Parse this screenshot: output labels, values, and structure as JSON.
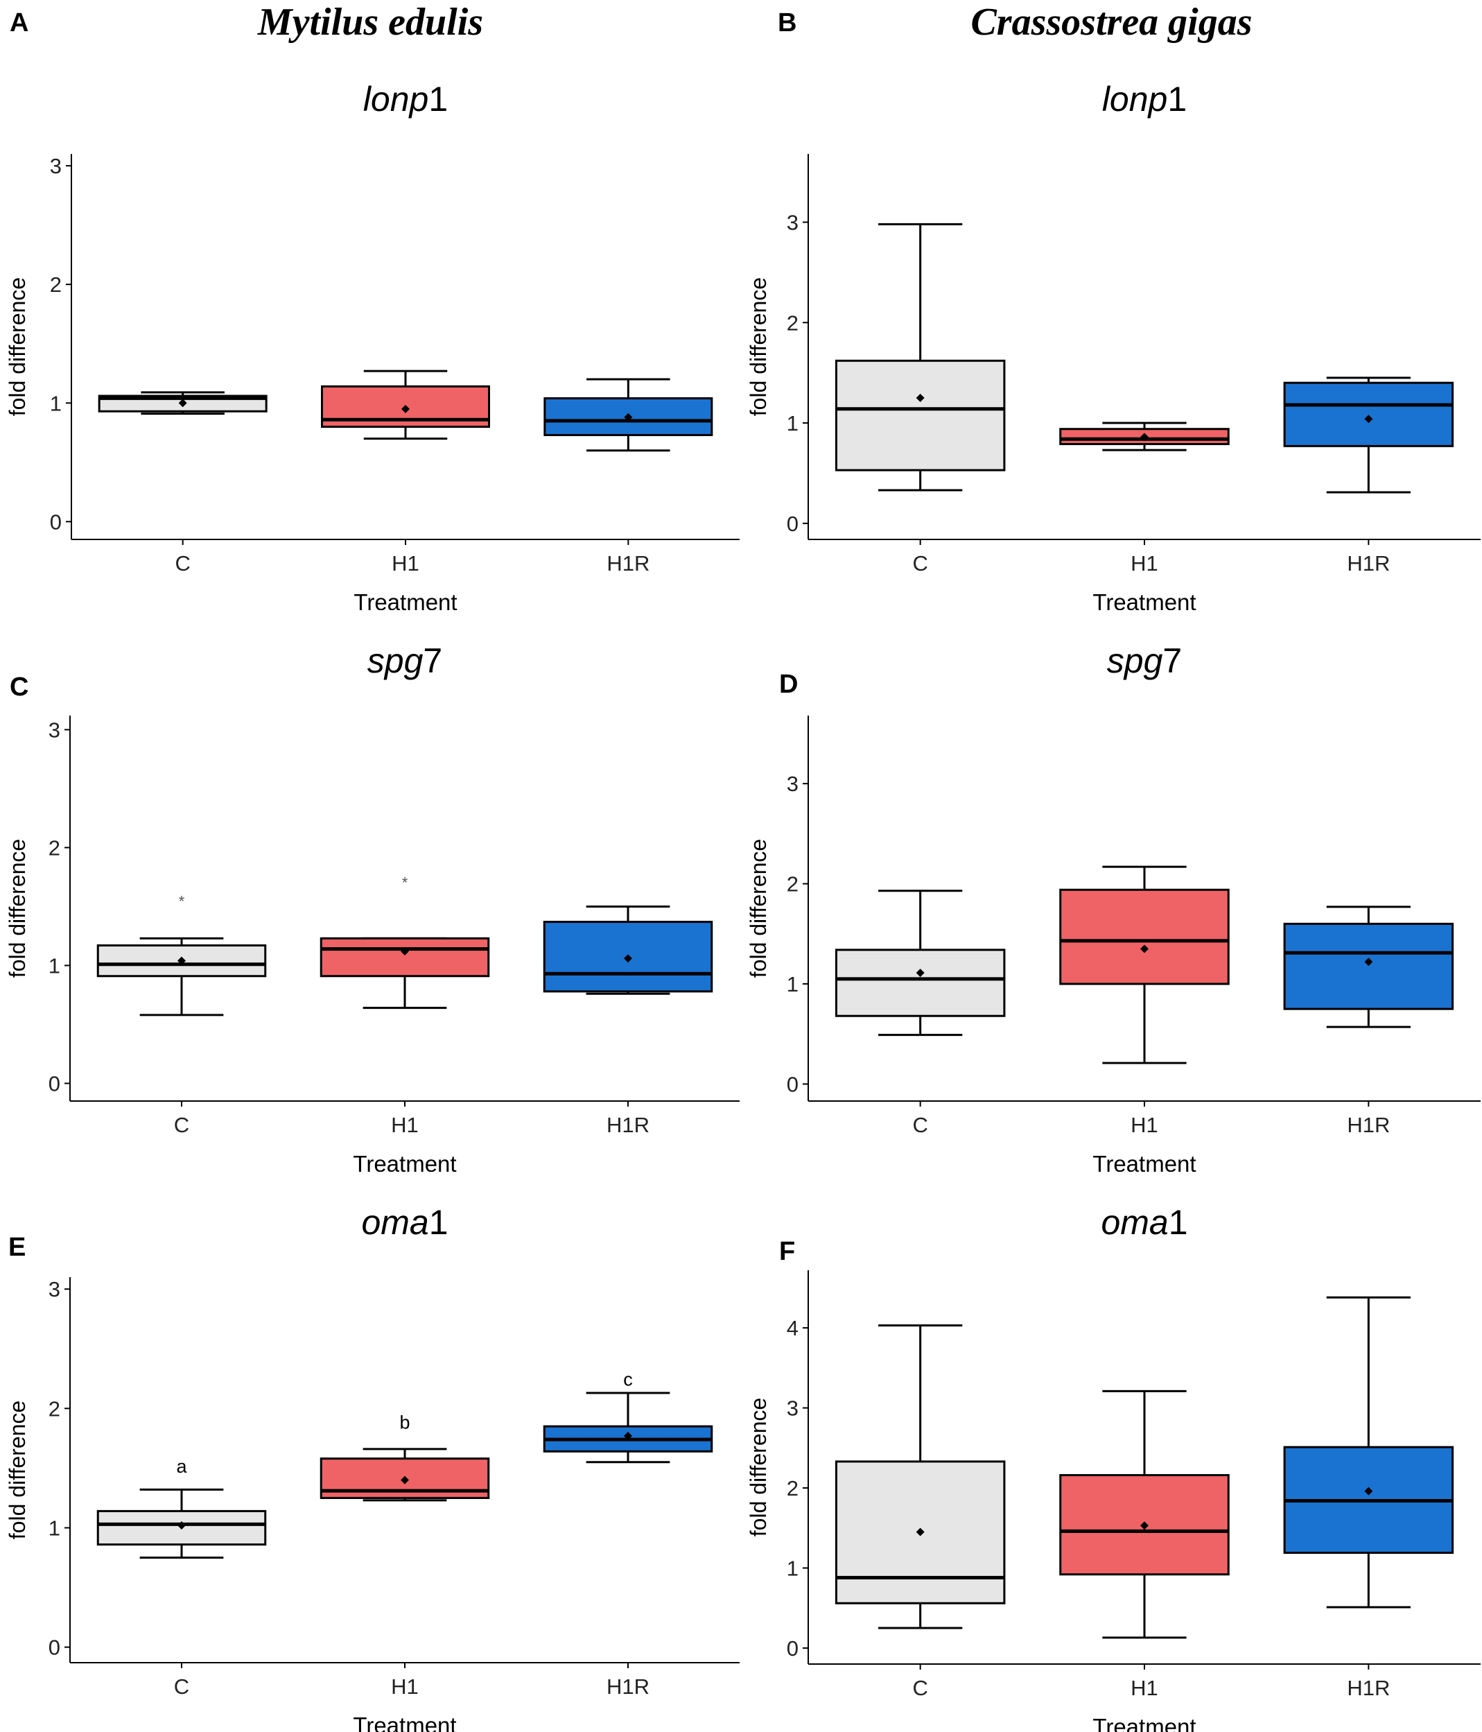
{
  "column_titles": [
    "Mytilus edulis",
    "Crassostrea gigas"
  ],
  "colors": {
    "C": "#e6e6e6",
    "H1": "#ef6366",
    "H1R": "#1b73d1",
    "line": "#000000"
  },
  "chart_data": [
    {
      "type": "box",
      "panel": "A",
      "title": "lonp1",
      "gene_italic": "lonp",
      "gene_num": "1",
      "xlabel": "Treatment",
      "ylabel": "fold difference",
      "ylim": [
        -0.15,
        3.1
      ],
      "yticks": [
        0,
        1,
        2,
        3
      ],
      "categories": [
        "C",
        "H1",
        "H1R"
      ],
      "series": [
        {
          "name": "C",
          "whisker_low": 0.91,
          "q1": 0.93,
          "median": 1.04,
          "q3": 1.06,
          "whisker_high": 1.09,
          "mean": 1.0,
          "outliers": []
        },
        {
          "name": "H1",
          "whisker_low": 0.7,
          "q1": 0.8,
          "median": 0.86,
          "q3": 1.14,
          "whisker_high": 1.27,
          "mean": 0.95,
          "outliers": []
        },
        {
          "name": "H1R",
          "whisker_low": 0.6,
          "q1": 0.73,
          "median": 0.85,
          "q3": 1.04,
          "whisker_high": 1.2,
          "mean": 0.88,
          "outliers": []
        }
      ],
      "letters": []
    },
    {
      "type": "box",
      "panel": "B",
      "title": "lonp1",
      "gene_italic": "lonp",
      "gene_num": "1",
      "xlabel": "Treatment",
      "ylabel": "fold difference",
      "ylim": [
        -0.16,
        3.68
      ],
      "yticks": [
        0,
        1,
        2,
        3
      ],
      "categories": [
        "C",
        "H1",
        "H1R"
      ],
      "series": [
        {
          "name": "C",
          "whisker_low": 0.33,
          "q1": 0.53,
          "median": 1.14,
          "q3": 1.62,
          "whisker_high": 2.98,
          "mean": 1.25,
          "outliers": []
        },
        {
          "name": "H1",
          "whisker_low": 0.73,
          "q1": 0.79,
          "median": 0.84,
          "q3": 0.94,
          "whisker_high": 1.0,
          "mean": 0.86,
          "outliers": []
        },
        {
          "name": "H1R",
          "whisker_low": 0.31,
          "q1": 0.77,
          "median": 1.18,
          "q3": 1.4,
          "whisker_high": 1.45,
          "mean": 1.04,
          "outliers": []
        }
      ],
      "letters": []
    },
    {
      "type": "box",
      "panel": "C",
      "title": "spg7",
      "gene_italic": "spg",
      "gene_num": "7",
      "xlabel": "Treatment",
      "ylabel": "fold difference",
      "ylim": [
        -0.15,
        3.12
      ],
      "yticks": [
        0,
        1,
        2,
        3
      ],
      "categories": [
        "C",
        "H1",
        "H1R"
      ],
      "series": [
        {
          "name": "C",
          "whisker_low": 0.58,
          "q1": 0.91,
          "median": 1.01,
          "q3": 1.17,
          "whisker_high": 1.23,
          "mean": 1.04,
          "outliers": [
            1.57
          ]
        },
        {
          "name": "H1",
          "whisker_low": 0.64,
          "q1": 0.91,
          "median": 1.14,
          "q3": 1.23,
          "whisker_high": 1.23,
          "mean": 1.12,
          "outliers": [
            1.73
          ]
        },
        {
          "name": "H1R",
          "whisker_low": 0.76,
          "q1": 0.78,
          "median": 0.93,
          "q3": 1.37,
          "whisker_high": 1.5,
          "mean": 1.06,
          "outliers": []
        }
      ],
      "letters": []
    },
    {
      "type": "box",
      "panel": "D",
      "title": "spg7",
      "gene_italic": "spg",
      "gene_num": "7",
      "xlabel": "Treatment",
      "ylabel": "fold difference",
      "ylim": [
        -0.17,
        3.68
      ],
      "yticks": [
        0,
        1,
        2,
        3
      ],
      "categories": [
        "C",
        "H1",
        "H1R"
      ],
      "series": [
        {
          "name": "C",
          "whisker_low": 0.49,
          "q1": 0.68,
          "median": 1.05,
          "q3": 1.34,
          "whisker_high": 1.93,
          "mean": 1.11,
          "outliers": []
        },
        {
          "name": "H1",
          "whisker_low": 0.21,
          "q1": 1.0,
          "median": 1.43,
          "q3": 1.94,
          "whisker_high": 2.17,
          "mean": 1.35,
          "outliers": []
        },
        {
          "name": "H1R",
          "whisker_low": 0.57,
          "q1": 0.75,
          "median": 1.31,
          "q3": 1.6,
          "whisker_high": 1.77,
          "mean": 1.22,
          "outliers": []
        }
      ],
      "letters": []
    },
    {
      "type": "box",
      "panel": "E",
      "title": "oma1",
      "gene_italic": "oma",
      "gene_num": "1",
      "xlabel": "Treatment",
      "ylabel": "fold difference",
      "ylim": [
        -0.13,
        3.1
      ],
      "yticks": [
        0,
        1,
        2,
        3
      ],
      "categories": [
        "C",
        "H1",
        "H1R"
      ],
      "series": [
        {
          "name": "C",
          "whisker_low": 0.75,
          "q1": 0.86,
          "median": 1.03,
          "q3": 1.14,
          "whisker_high": 1.32,
          "mean": 1.02,
          "outliers": []
        },
        {
          "name": "H1",
          "whisker_low": 1.23,
          "q1": 1.25,
          "median": 1.31,
          "q3": 1.58,
          "whisker_high": 1.66,
          "mean": 1.4,
          "outliers": []
        },
        {
          "name": "H1R",
          "whisker_low": 1.55,
          "q1": 1.64,
          "median": 1.74,
          "q3": 1.85,
          "whisker_high": 2.13,
          "mean": 1.77,
          "outliers": []
        }
      ],
      "letters": [
        "a",
        "b",
        "c"
      ],
      "letter_y": [
        1.52,
        1.89,
        2.25
      ]
    },
    {
      "type": "box",
      "panel": "F",
      "title": "oma1",
      "gene_italic": "oma",
      "gene_num": "1",
      "xlabel": "Treatment",
      "ylabel": "fold difference",
      "ylim": [
        -0.2,
        4.72
      ],
      "yticks": [
        0,
        1,
        2,
        3,
        4
      ],
      "categories": [
        "C",
        "H1",
        "H1R"
      ],
      "series": [
        {
          "name": "C",
          "whisker_low": 0.25,
          "q1": 0.56,
          "median": 0.88,
          "q3": 2.33,
          "whisker_high": 4.03,
          "mean": 1.45,
          "outliers": []
        },
        {
          "name": "H1",
          "whisker_low": 0.13,
          "q1": 0.92,
          "median": 1.46,
          "q3": 2.16,
          "whisker_high": 3.21,
          "mean": 1.53,
          "outliers": []
        },
        {
          "name": "H1R",
          "whisker_low": 0.51,
          "q1": 1.19,
          "median": 1.84,
          "q3": 2.51,
          "whisker_high": 4.38,
          "mean": 1.96,
          "outliers": []
        }
      ],
      "letters": []
    }
  ]
}
